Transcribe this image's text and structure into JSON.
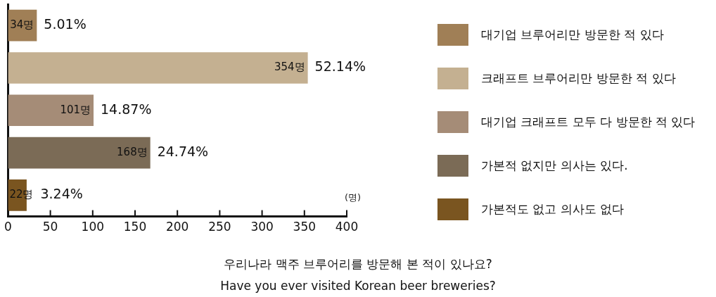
{
  "chart_data": {
    "type": "bar",
    "orientation": "horizontal",
    "title": "우리나라 맥주 브루어리를 방문해 본 적이 있나요?",
    "subtitle": "Have you ever visited Korean beer breweries?",
    "xlabel": "(명)",
    "categories": [
      null,
      null,
      null,
      null,
      null
    ],
    "series": [
      {
        "name": "대기업 브루어리만 방문한 적 있다",
        "color": "#a07f56",
        "values": [
          34,
          null,
          null,
          null,
          null
        ],
        "value_labels": [
          "34명",
          null,
          null,
          null,
          null
        ]
      },
      {
        "name": "크래프트 브루어리만 방문한 적 있다",
        "color": "#c4b091",
        "values": [
          null,
          354,
          null,
          null,
          null
        ],
        "value_labels": [
          null,
          "354명",
          null,
          null,
          null
        ]
      },
      {
        "name": "대기업 크래프트 모두 다 방문한 적 있다",
        "color": "#a58c77",
        "values": [
          null,
          null,
          101,
          null,
          null
        ],
        "value_labels": [
          null,
          null,
          "101명",
          null,
          null
        ]
      },
      {
        "name": "가본적 없지만 의사는 있다.",
        "color": "#7b6b56",
        "values": [
          null,
          null,
          null,
          168,
          null
        ],
        "value_labels": [
          null,
          null,
          null,
          "168명",
          null
        ]
      },
      {
        "name": "가본적도 없고 의사도 없다",
        "color": "#7a5520",
        "values": [
          null,
          null,
          null,
          null,
          22
        ],
        "value_labels": [
          null,
          null,
          null,
          null,
          "22명"
        ]
      }
    ],
    "annotations": [
      {
        "text": "5.01%",
        "x": 34
      },
      {
        "text": "52.14%",
        "x": 354
      },
      {
        "text": "14.87%",
        "x": 101
      },
      {
        "text": "24.74%",
        "x": 168
      },
      {
        "text": "3.24%",
        "x": 22
      }
    ],
    "xlim": [
      0,
      400
    ],
    "xticks": [
      0,
      50,
      100,
      150,
      200,
      250,
      300,
      350,
      400
    ],
    "tick_labels": "x",
    "grid": false,
    "legend": "right"
  }
}
